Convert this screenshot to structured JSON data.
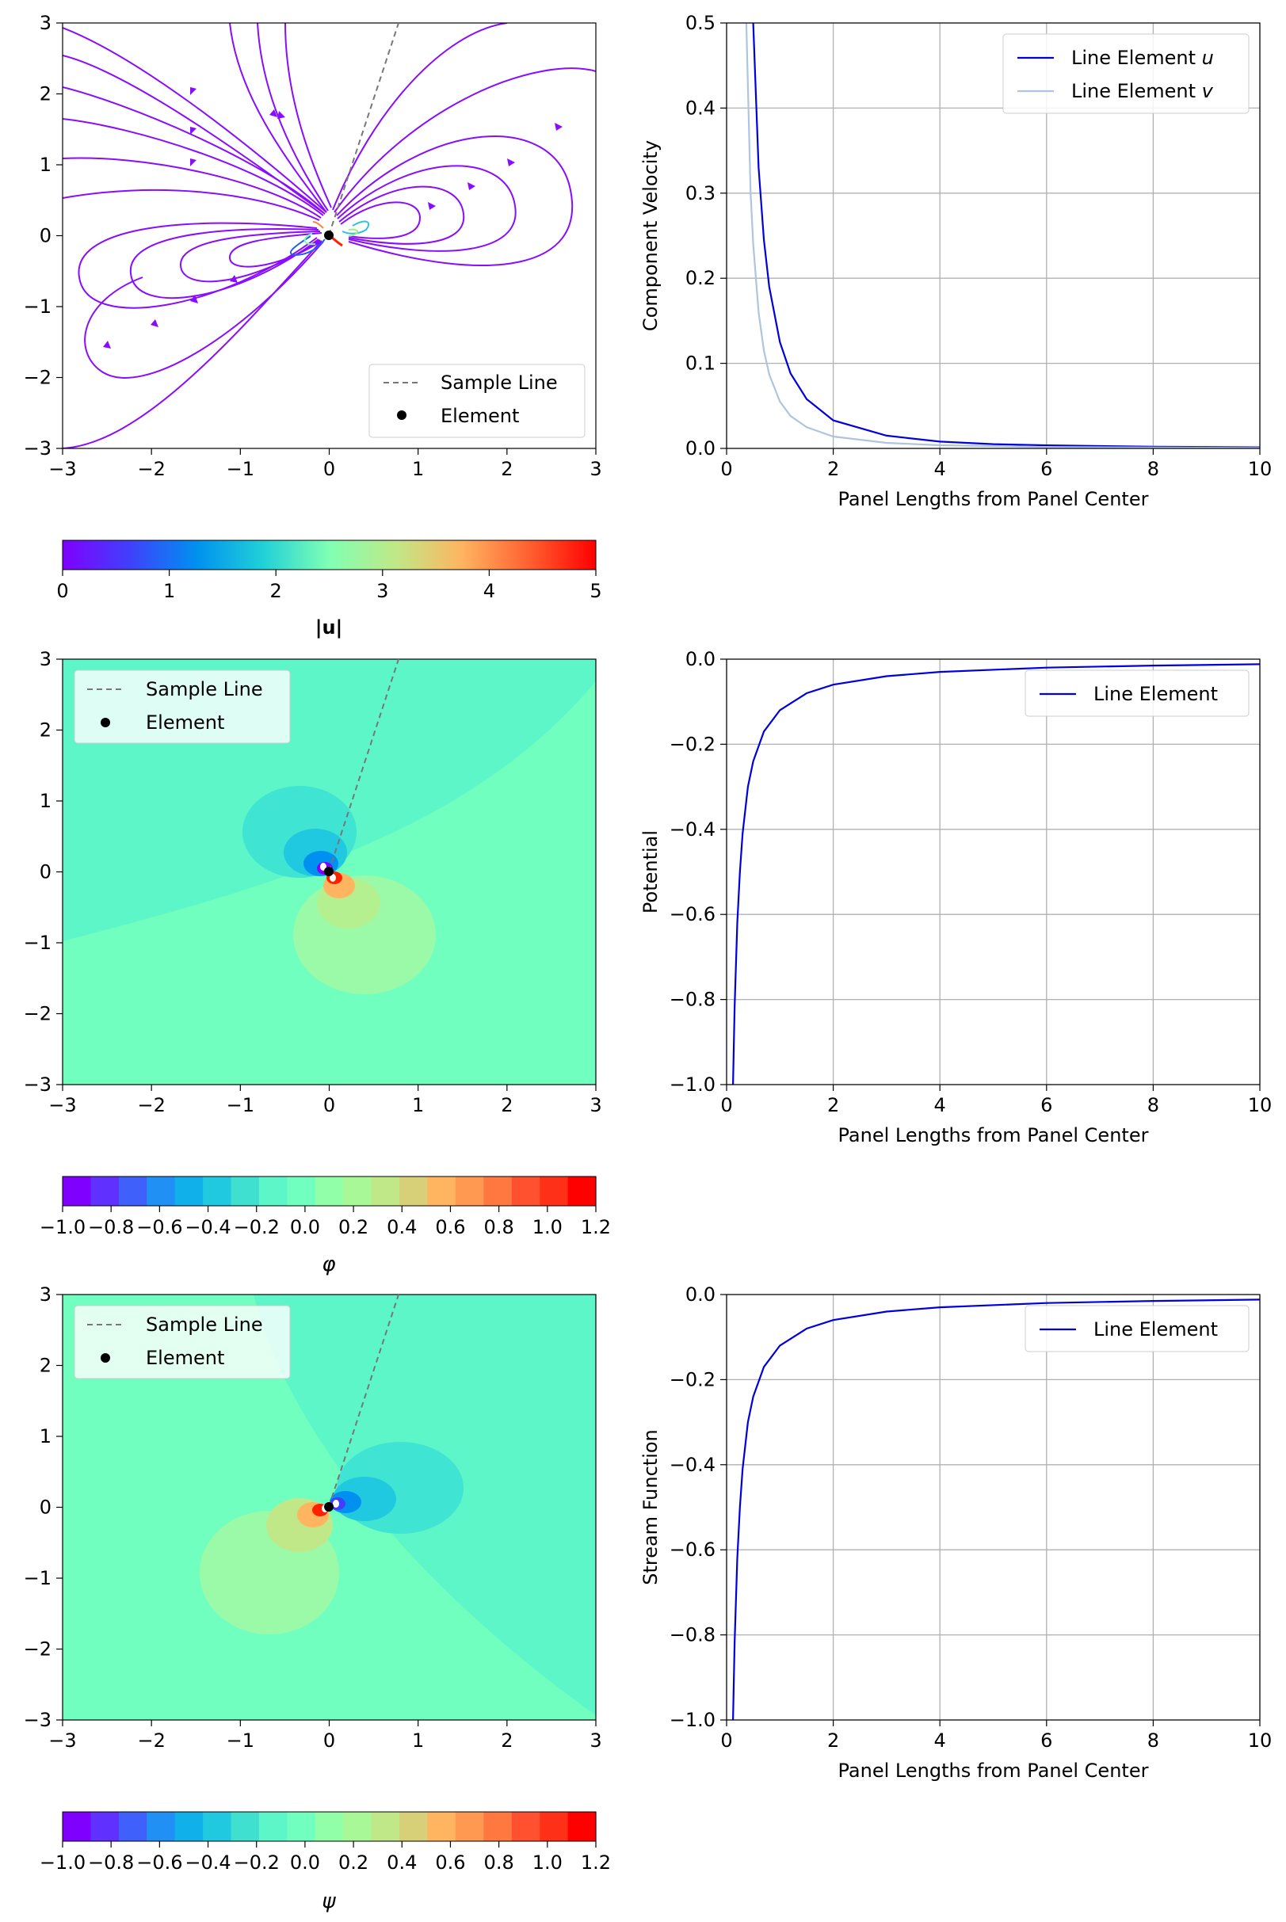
{
  "chart_data": [
    {
      "type": "streamline",
      "id": "velocity_field",
      "xlim": [
        -3,
        3
      ],
      "ylim": [
        -3,
        3
      ],
      "xticks": [
        "−3",
        "−2",
        "−1",
        "0",
        "1",
        "2",
        "3"
      ],
      "yticks": [
        "−3",
        "−2",
        "−1",
        "0",
        "1",
        "2",
        "3"
      ],
      "element": {
        "x": 0,
        "y": 0
      },
      "sample_line": {
        "x": [
          0,
          0.78
        ],
        "y": [
          0,
          3
        ]
      },
      "legend": {
        "position": "lower-right",
        "entries": [
          "Sample Line",
          "Element"
        ]
      },
      "colorbar": {
        "label": "|u|",
        "range": [
          0,
          5
        ],
        "ticks": [
          "0",
          "1",
          "2",
          "3",
          "4",
          "5"
        ]
      }
    },
    {
      "type": "line",
      "id": "velocity_profile",
      "xlabel": "Panel Lengths from Panel Center",
      "ylabel": "Component Velocity",
      "xlim": [
        0,
        10
      ],
      "ylim": [
        0,
        0.5
      ],
      "xticks": [
        "0",
        "2",
        "4",
        "6",
        "8",
        "10"
      ],
      "yticks": [
        "0.0",
        "0.1",
        "0.2",
        "0.3",
        "0.4",
        "0.5"
      ],
      "grid": true,
      "legend": {
        "position": "top-right"
      },
      "series": [
        {
          "name": "Line Element",
          "symbol": "u",
          "color": "#0000dd",
          "x": [
            0.5,
            0.6,
            0.7,
            0.8,
            1.0,
            1.2,
            1.5,
            2,
            3,
            4,
            5,
            6,
            8,
            10
          ],
          "y": [
            0.5,
            0.33,
            0.245,
            0.19,
            0.125,
            0.088,
            0.058,
            0.033,
            0.015,
            0.008,
            0.005,
            0.0036,
            0.002,
            0.0013
          ]
        },
        {
          "name": "Line Element",
          "symbol": "v",
          "color": "#b0c4de",
          "x": [
            0.37,
            0.45,
            0.5,
            0.6,
            0.7,
            0.8,
            1.0,
            1.2,
            1.5,
            2,
            3,
            4,
            6,
            8,
            10
          ],
          "y": [
            0.5,
            0.3,
            0.24,
            0.16,
            0.115,
            0.087,
            0.055,
            0.038,
            0.025,
            0.014,
            0.0065,
            0.0037,
            0.0017,
            0.001,
            0.0006
          ]
        }
      ]
    },
    {
      "type": "heatmap",
      "id": "potential_field",
      "xlim": [
        -3,
        3
      ],
      "ylim": [
        -3,
        3
      ],
      "xticks": [
        "−3",
        "−2",
        "−1",
        "0",
        "1",
        "2",
        "3"
      ],
      "yticks": [
        "−3",
        "−2",
        "−1",
        "0",
        "1",
        "2",
        "3"
      ],
      "element": {
        "x": 0,
        "y": 0
      },
      "sample_line": {
        "x": [
          0,
          0.78
        ],
        "y": [
          0,
          3
        ]
      },
      "legend": {
        "position": "upper-left",
        "entries": [
          "Sample Line",
          "Element"
        ]
      },
      "colorbar": {
        "label": "φ",
        "range": [
          -1.0,
          1.2
        ],
        "ticks": [
          "−1.0",
          "−0.8",
          "−0.6",
          "−0.4",
          "−0.2",
          "0.0",
          "0.2",
          "0.4",
          "0.6",
          "0.8",
          "1.0",
          "1.2"
        ]
      }
    },
    {
      "type": "line",
      "id": "potential_profile",
      "xlabel": "Panel Lengths from Panel Center",
      "ylabel": "Potential",
      "xlim": [
        0,
        10
      ],
      "ylim": [
        -1.0,
        0.0
      ],
      "xticks": [
        "0",
        "2",
        "4",
        "6",
        "8",
        "10"
      ],
      "yticks": [
        "−1.0",
        "−0.8",
        "−0.6",
        "−0.4",
        "−0.2",
        "0.0"
      ],
      "grid": true,
      "legend": {
        "position": "top-right"
      },
      "series": [
        {
          "name": "Line Element",
          "color": "#0000dd",
          "x": [
            0.12,
            0.15,
            0.2,
            0.25,
            0.3,
            0.4,
            0.5,
            0.7,
            1.0,
            1.5,
            2,
            3,
            4,
            6,
            8,
            10
          ],
          "y": [
            -1.0,
            -0.82,
            -0.62,
            -0.5,
            -0.41,
            -0.3,
            -0.24,
            -0.17,
            -0.12,
            -0.08,
            -0.06,
            -0.04,
            -0.03,
            -0.02,
            -0.015,
            -0.012
          ]
        }
      ]
    },
    {
      "type": "heatmap",
      "id": "stream_function_field",
      "xlim": [
        -3,
        3
      ],
      "ylim": [
        -3,
        3
      ],
      "xticks": [
        "−3",
        "−2",
        "−1",
        "0",
        "1",
        "2",
        "3"
      ],
      "yticks": [
        "−3",
        "−2",
        "−1",
        "0",
        "1",
        "2",
        "3"
      ],
      "element": {
        "x": 0,
        "y": 0
      },
      "sample_line": {
        "x": [
          0,
          0.78
        ],
        "y": [
          0,
          3
        ]
      },
      "legend": {
        "position": "upper-left",
        "entries": [
          "Sample Line",
          "Element"
        ]
      },
      "colorbar": {
        "label": "ψ",
        "range": [
          -1.0,
          1.2
        ],
        "ticks": [
          "−1.0",
          "−0.8",
          "−0.6",
          "−0.4",
          "−0.2",
          "0.0",
          "0.2",
          "0.4",
          "0.6",
          "0.8",
          "1.0",
          "1.2"
        ]
      }
    },
    {
      "type": "line",
      "id": "stream_function_profile",
      "xlabel": "Panel Lengths from Panel Center",
      "ylabel": "Stream Function",
      "xlim": [
        0,
        10
      ],
      "ylim": [
        -1.0,
        0.0
      ],
      "xticks": [
        "0",
        "2",
        "4",
        "6",
        "8",
        "10"
      ],
      "yticks": [
        "−1.0",
        "−0.8",
        "−0.6",
        "−0.4",
        "−0.2",
        "0.0"
      ],
      "grid": true,
      "legend": {
        "position": "top-right"
      },
      "series": [
        {
          "name": "Line Element",
          "color": "#0000dd",
          "x": [
            0.12,
            0.15,
            0.2,
            0.25,
            0.3,
            0.4,
            0.5,
            0.7,
            1.0,
            1.5,
            2,
            3,
            4,
            6,
            8,
            10
          ],
          "y": [
            -1.0,
            -0.82,
            -0.62,
            -0.5,
            -0.41,
            -0.3,
            -0.24,
            -0.17,
            -0.12,
            -0.08,
            -0.06,
            -0.04,
            -0.03,
            -0.02,
            -0.015,
            -0.012
          ]
        }
      ]
    }
  ],
  "legend_text": {
    "sample_line": "Sample Line",
    "element": "Element",
    "line_element": "Line Element"
  }
}
